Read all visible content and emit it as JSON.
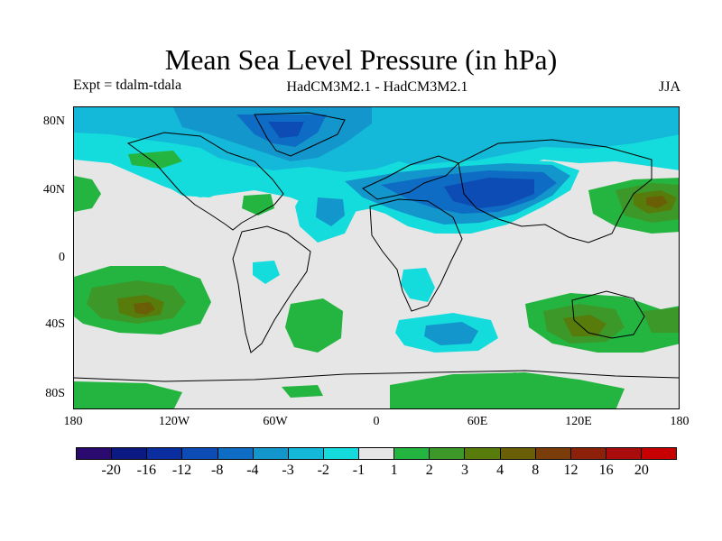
{
  "title": "Mean Sea Level Pressure (in hPa)",
  "expt_label": "Expt = tdalm-tdala",
  "model_label": "HadCM3M2.1 - HadCM3M2.1",
  "season": "JJA",
  "lat_ticks": [
    "80N",
    "40N",
    "0",
    "40S",
    "80S"
  ],
  "lon_ticks": [
    "180",
    "120W",
    "60W",
    "0",
    "60E",
    "120E",
    "180"
  ],
  "legend": {
    "colors": [
      "#2a0a6e",
      "#0a1a82",
      "#0a2ea0",
      "#0c4cb4",
      "#0f6cc4",
      "#1296cc",
      "#14b8d8",
      "#14dcdc",
      "#e6e6e6",
      "#24b440",
      "#3c9828",
      "#587c0c",
      "#6a5e06",
      "#7a3c08",
      "#8c2008",
      "#a80c0c",
      "#c80000"
    ],
    "labels": [
      "-20",
      "-16",
      "-12",
      "-8",
      "-4",
      "-3",
      "-2",
      "-1",
      "1",
      "2",
      "3",
      "4",
      "8",
      "12",
      "16",
      "20"
    ]
  },
  "chart_data": {
    "type": "heatmap",
    "title": "Mean Sea Level Pressure (in hPa)",
    "variable": "Mean Sea Level Pressure difference",
    "units": "hPa",
    "season": "JJA",
    "experiment": "tdalm-tdala",
    "x_range": [
      -180,
      180
    ],
    "y_range": [
      -90,
      90
    ],
    "contour_levels": [
      -20,
      -16,
      -12,
      -8,
      -4,
      -3,
      -2,
      -1,
      1,
      2,
      3,
      4,
      8,
      12,
      16,
      20
    ]
  }
}
